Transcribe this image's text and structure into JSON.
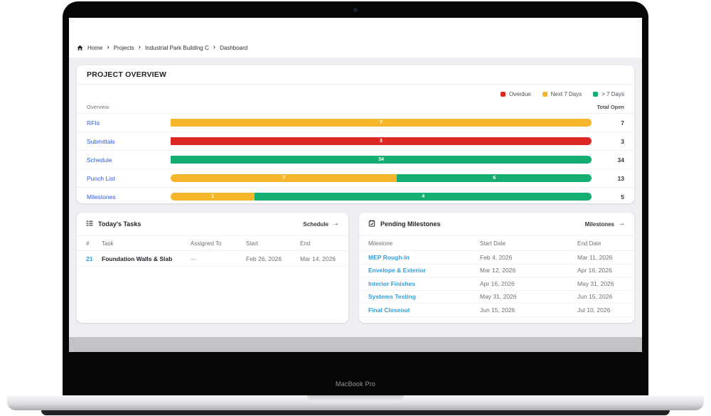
{
  "device": {
    "label": "MacBook Pro"
  },
  "icons": {
    "chevron_right": "›",
    "arrow_right": "→"
  },
  "breadcrumb": {
    "items": [
      "Home",
      "Projects",
      "Industrial Park Building C",
      "Dashboard"
    ]
  },
  "overview": {
    "title": "PROJECT OVERVIEW",
    "legend": [
      {
        "label": "Overdue",
        "color": "#DE2823"
      },
      {
        "label": "Next 7 Days",
        "color": "#F5B62B"
      },
      {
        "label": "> 7 Days",
        "color": "#14AE73"
      }
    ],
    "columns": {
      "left": "Overview",
      "right": "Total Open"
    },
    "rows": [
      {
        "label": "RFIs",
        "total": "7",
        "segments": [
          {
            "value": "7",
            "color": "#F5B62B",
            "pct": 100
          }
        ]
      },
      {
        "label": "Submittals",
        "total": "3",
        "segments": [
          {
            "value": "3",
            "color": "#DE2823",
            "pct": 100
          }
        ]
      },
      {
        "label": "Schedule",
        "total": "34",
        "segments": [
          {
            "value": "34",
            "color": "#14AE73",
            "pct": 100
          }
        ]
      },
      {
        "label": "Punch List",
        "total": "13",
        "segments": [
          {
            "value": "7",
            "color": "#F5B62B",
            "pct": 53.8
          },
          {
            "value": "6",
            "color": "#14AE73",
            "pct": 46.2
          }
        ]
      },
      {
        "label": "Milestones",
        "total": "5",
        "segments": [
          {
            "value": "1",
            "color": "#F5B62B",
            "pct": 20
          },
          {
            "value": "4",
            "color": "#14AE73",
            "pct": 80
          }
        ]
      }
    ]
  },
  "chart_data": {
    "type": "bar",
    "stacked": true,
    "categories": [
      "RFIs",
      "Submittals",
      "Schedule",
      "Punch List",
      "Milestones"
    ],
    "series": [
      {
        "name": "Overdue",
        "color": "#DE2823",
        "values": [
          0,
          3,
          0,
          0,
          0
        ]
      },
      {
        "name": "Next 7 Days",
        "color": "#F5B62B",
        "values": [
          7,
          0,
          0,
          7,
          1
        ]
      },
      {
        "name": "> 7 Days",
        "color": "#14AE73",
        "values": [
          0,
          0,
          34,
          6,
          4
        ]
      }
    ],
    "totals": [
      7,
      3,
      34,
      13,
      5
    ],
    "legend_position": "top-right"
  },
  "tasks": {
    "title": "Today's Tasks",
    "link": "Schedule",
    "headers": {
      "num": "#",
      "task": "Task",
      "assigned": "Assigned To",
      "start": "Start",
      "end": "End"
    },
    "rows": [
      {
        "num": "21",
        "task": "Foundation Walls & Slab",
        "assigned": "—",
        "start": "Feb 26, 2026",
        "end": "Mar 14, 2026"
      }
    ]
  },
  "milestones_card": {
    "title": "Pending Milestones",
    "link": "Milestones",
    "headers": {
      "name": "Milestone",
      "start": "Start Date",
      "end": "End Date"
    },
    "rows": [
      {
        "name": "MEP Rough-In",
        "start": "Feb 4, 2026",
        "end": "Mar 11, 2026"
      },
      {
        "name": "Envelope & Exterior",
        "start": "Mar 12, 2026",
        "end": "Apr 16, 2026"
      },
      {
        "name": "Interior Finishes",
        "start": "Apr 16, 2026",
        "end": "May 31, 2026"
      },
      {
        "name": "Systems Testing",
        "start": "May 31, 2026",
        "end": "Jun 15, 2026"
      },
      {
        "name": "Final Closeout",
        "start": "Jun 15, 2026",
        "end": "Jul 10, 2026"
      }
    ]
  }
}
